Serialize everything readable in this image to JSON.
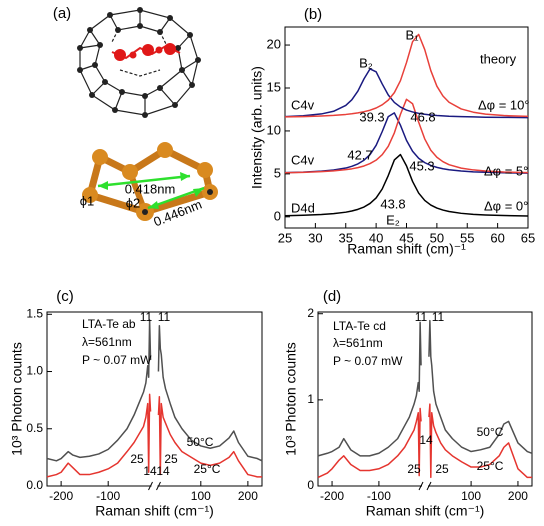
{
  "diagram": {
    "label": "(a)",
    "distances": [
      "0.418nm",
      "0.446nm"
    ],
    "angles": [
      "ϕ1",
      "ϕ2"
    ]
  },
  "chart_data": [
    {
      "type": "line",
      "panel_label": "(b)",
      "xlabel": "Raman shift (cm)⁻¹",
      "ylabel": "Intensity (arb. units)",
      "x": [
        25,
        28,
        31,
        33,
        35,
        36,
        37,
        38,
        39,
        40,
        41,
        42,
        43,
        44,
        45,
        46,
        47,
        48,
        49,
        50,
        51,
        52,
        54,
        56,
        58,
        61,
        65
      ],
      "series": [
        {
          "color": "#000000",
          "values": [
            0.13,
            0.18,
            0.27,
            0.37,
            0.54,
            0.68,
            0.87,
            1.14,
            1.56,
            2.2,
            3.24,
            4.81,
            6.62,
            7.25,
            5.93,
            4.12,
            2.77,
            1.91,
            1.37,
            1.02,
            0.79,
            0.62,
            0.41,
            0.29,
            0.22,
            0.15,
            0.1
          ]
        },
        {
          "color": "#1a1a80",
          "values": [
            5.14,
            5.2,
            5.32,
            5.45,
            5.68,
            5.88,
            6.16,
            6.59,
            7.25,
            8.33,
            9.92,
            11.67,
            12.1,
            10.67,
            8.9,
            7.63,
            6.82,
            6.31,
            5.98,
            5.76,
            5.6,
            5.48,
            5.34,
            5.24,
            5.19,
            5.13,
            5.09
          ]
        },
        {
          "color": "#e8403a",
          "values": [
            5.13,
            5.18,
            5.26,
            5.35,
            5.49,
            5.59,
            5.73,
            5.92,
            6.2,
            6.6,
            7.23,
            8.21,
            9.77,
            11.93,
            13.68,
            13.16,
            11.02,
            9.07,
            7.75,
            6.94,
            6.42,
            6.07,
            5.67,
            5.46,
            5.33,
            5.22,
            5.14
          ]
        },
        {
          "color": "#1a1a80",
          "values": [
            11.67,
            11.77,
            11.98,
            12.29,
            12.97,
            13.62,
            14.64,
            16.06,
            17.22,
            16.88,
            15.47,
            14.18,
            13.32,
            12.78,
            12.43,
            12.21,
            12.05,
            11.94,
            11.86,
            11.8,
            11.76,
            11.71,
            11.66,
            11.63,
            11.6,
            11.58,
            11.55
          ]
        },
        {
          "color": "#e8403a",
          "values": [
            11.63,
            11.67,
            11.74,
            11.81,
            11.92,
            12.0,
            12.1,
            12.24,
            12.41,
            12.67,
            13.04,
            13.59,
            14.46,
            15.85,
            17.96,
            20.39,
            21.24,
            19.47,
            17.03,
            15.21,
            14.07,
            13.34,
            12.56,
            12.18,
            11.96,
            11.79,
            11.69
          ]
        }
      ],
      "xlim": [
        25,
        65
      ],
      "ylim": [
        -1.3,
        22.1
      ],
      "xticks": [
        25,
        30,
        35,
        40,
        45,
        50,
        55,
        60,
        65
      ],
      "yticks": [
        0,
        5,
        10,
        15,
        20
      ],
      "annotations": [
        "B₂",
        "B₁",
        "theory",
        "C4v",
        "Δφ = 10°",
        "39.3",
        "46.8",
        "42.7",
        "45.3",
        "C4v",
        "Δφ = 5°",
        "D4d",
        "Δφ = 0°",
        "43.8",
        "E₂"
      ]
    },
    {
      "type": "line",
      "panel_label": "(c)",
      "xlabel": "Raman shift (cm⁻¹)",
      "ylabel": "10³ Photon counts",
      "x": [
        -230,
        -210,
        -200,
        -185,
        -175,
        -160,
        -140,
        -120,
        -100,
        -80,
        -60,
        -45,
        -35,
        -25,
        -20,
        -16,
        -14,
        -12,
        -10,
        0,
        10,
        12,
        14,
        16,
        20,
        25,
        35,
        45,
        60,
        80,
        100,
        120,
        140,
        160,
        170,
        180,
        200,
        220,
        230
      ],
      "series": [
        {
          "color": "#505050",
          "values": [
            0.24,
            0.22,
            0.24,
            0.3,
            0.27,
            0.25,
            0.26,
            0.28,
            0.32,
            0.4,
            0.5,
            0.62,
            0.72,
            0.82,
            0.9,
            1.05,
            0.95,
            1.45,
            1.1,
            null,
            1.0,
            1.4,
            1.2,
            1.15,
            0.95,
            0.85,
            0.72,
            0.6,
            0.5,
            0.4,
            0.35,
            0.33,
            0.35,
            0.42,
            0.48,
            0.38,
            0.26,
            0.24,
            0.22
          ]
        },
        {
          "color": "#e5352f",
          "values": [
            0.08,
            0.1,
            0.12,
            0.2,
            0.16,
            0.1,
            0.1,
            0.12,
            0.15,
            0.2,
            0.3,
            0.38,
            0.45,
            0.52,
            0.6,
            0.72,
            0.12,
            0.8,
            0.65,
            null,
            0.62,
            0.78,
            0.1,
            0.72,
            0.6,
            0.55,
            0.45,
            0.38,
            0.3,
            0.25,
            0.2,
            0.18,
            0.2,
            0.25,
            0.3,
            0.22,
            0.1,
            0.08,
            0.08
          ]
        }
      ],
      "xlim": [
        -230,
        230
      ],
      "xbreak": [
        -8,
        8
      ],
      "ylim": [
        0,
        1.52
      ],
      "xticks": [
        -200,
        -100,
        100,
        200
      ],
      "yticks": [
        {
          "value": 0,
          "label": "0.0"
        },
        0.5,
        {
          "value": 1,
          "label": "1.0"
        },
        1.5
      ],
      "annotations": [
        "LTA-Te ab",
        "λ=561nm",
        "P ~ 0.07 mW",
        "11",
        "11",
        "25",
        "14",
        "14",
        "25",
        "50°C",
        "25°C"
      ]
    },
    {
      "type": "line",
      "panel_label": "(d)",
      "xlabel": "Raman shift (cm⁻¹)",
      "ylabel": "10³ Photon counts",
      "x": [
        -230,
        -210,
        -200,
        -185,
        -175,
        -160,
        -140,
        -120,
        -100,
        -80,
        -60,
        -45,
        -35,
        -25,
        -20,
        -16,
        -14,
        -12,
        -10,
        0,
        10,
        12,
        14,
        16,
        20,
        25,
        35,
        45,
        60,
        80,
        100,
        120,
        140,
        160,
        170,
        180,
        200,
        220,
        230
      ],
      "series": [
        {
          "color": "#505050",
          "values": [
            0.35,
            0.38,
            0.4,
            0.45,
            0.55,
            0.42,
            0.35,
            0.35,
            0.38,
            0.45,
            0.55,
            0.7,
            0.8,
            0.95,
            1.05,
            1.2,
            1.1,
            1.9,
            1.4,
            null,
            1.5,
            1.92,
            1.5,
            1.4,
            1.1,
            0.95,
            0.8,
            0.65,
            0.55,
            0.45,
            0.4,
            0.42,
            0.45,
            0.6,
            0.72,
            0.75,
            0.5,
            0.4,
            0.38
          ]
        },
        {
          "color": "#e5352f",
          "values": [
            0.1,
            0.15,
            0.2,
            0.3,
            0.35,
            0.25,
            0.18,
            0.18,
            0.2,
            0.25,
            0.35,
            0.45,
            0.55,
            0.65,
            0.75,
            0.85,
            0.12,
            0.9,
            0.75,
            null,
            0.8,
            0.95,
            0.1,
            0.85,
            0.7,
            0.62,
            0.5,
            0.42,
            0.35,
            0.28,
            0.22,
            0.22,
            0.25,
            0.35,
            0.45,
            0.5,
            0.2,
            0.1,
            0.1
          ]
        }
      ],
      "xlim": [
        -230,
        230
      ],
      "xbreak": [
        -8,
        8
      ],
      "ylim": [
        0,
        2.02
      ],
      "xticks": [
        -200,
        -100,
        100,
        200
      ],
      "yticks": [
        0,
        1,
        2
      ],
      "annotations": [
        "LTA-Te cd",
        "λ=561nm",
        "P ~ 0.07 mW",
        "11",
        "11",
        "25",
        "14",
        "25",
        "50°C",
        "25°C"
      ]
    }
  ]
}
